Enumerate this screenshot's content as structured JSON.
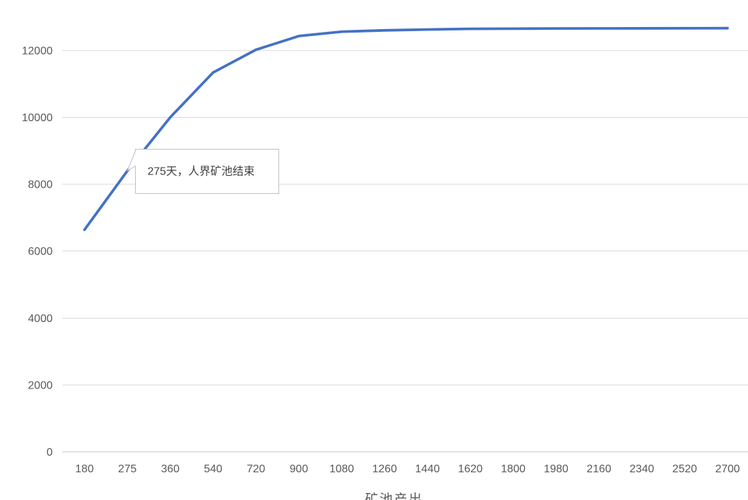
{
  "chart_data": {
    "type": "line",
    "title": "",
    "categories": [
      "180",
      "275",
      "360",
      "540",
      "720",
      "900",
      "1080",
      "1260",
      "1440",
      "1620",
      "1800",
      "1980",
      "2160",
      "2340",
      "2520",
      "2700"
    ],
    "series": [
      {
        "name": "",
        "color": "#4472C4",
        "values": [
          6640,
          8400,
          10000,
          11340,
          12020,
          12430,
          12560,
          12600,
          12625,
          12645,
          12650,
          12655,
          12658,
          12660,
          12662,
          12665
        ]
      }
    ],
    "y_ticks": [
      0,
      2000,
      4000,
      6000,
      8000,
      10000,
      12000
    ],
    "y_tick_labels": [
      "0",
      "2000",
      "4000",
      "6000",
      "8000",
      "10000",
      "12000"
    ],
    "xlabel": "矿池产出",
    "ylabel": "",
    "ylim": [
      0,
      13000
    ],
    "grid": true,
    "legend": false,
    "annotation": {
      "text": "275天，人界矿池结束",
      "target_category": "275",
      "target_index": 1,
      "target_value": 8400
    }
  },
  "colors": {
    "line": "#4472C4",
    "gridline": "#D9D9D9",
    "axis_line": "#C9C9C9",
    "tick_label": "#595959",
    "axis_title": "#595959",
    "annotation_fill": "#FFFFFF",
    "annotation_border": "#BFBFBF",
    "annotation_text": "#404040"
  }
}
